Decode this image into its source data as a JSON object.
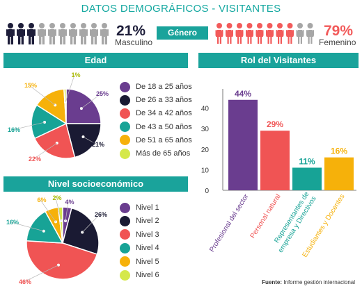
{
  "title": "DATOS DEMOGRÁFICOS - VISITANTES",
  "gender": {
    "badge": "Género",
    "male_pct": "21%",
    "male_label": "Masculino",
    "female_pct": "79%",
    "female_label": "Femenino",
    "male_color": "#1e1e3a",
    "female_color": "#f25a5a",
    "inactive_color": "#a6a6a6",
    "male_filled": 3,
    "female_filled": 8,
    "icons_per_side": 10
  },
  "age": {
    "header": "Edad"
  },
  "nse": {
    "header": "Nivel socioeconómico"
  },
  "role": {
    "header": "Rol del Visitantes"
  },
  "source": {
    "label": "Fuente:",
    "text": "Informe gestión internacional"
  },
  "chart_data": [
    {
      "type": "pie",
      "title": "Edad",
      "categories": [
        "De 18 a 25 años",
        "De 26 a 33 años",
        "De 34 a 42 años",
        "De 43 a 50 años",
        "De 51 a 65 años",
        "Más de 65 años"
      ],
      "values": [
        25,
        21,
        22,
        16,
        15,
        1
      ],
      "labels": [
        "25%",
        "21%",
        "22%",
        "16%",
        "15%",
        "1%"
      ],
      "colors": [
        "#6a3d8f",
        "#1a1a33",
        "#f05454",
        "#17a396",
        "#f6b10a",
        "#d5e84a"
      ],
      "legend": "right"
    },
    {
      "type": "pie",
      "title": "Nivel socioeconómico",
      "categories": [
        "Nivel 1",
        "Nivel 2",
        "Nivel 3",
        "Nivel 4",
        "Nivel 5",
        "Nivel 6"
      ],
      "values": [
        4,
        26,
        46,
        16,
        6,
        2
      ],
      "labels": [
        "4%",
        "26%",
        "46%",
        "16%",
        "6%",
        "2%"
      ],
      "colors": [
        "#6a3d8f",
        "#1a1a33",
        "#f05454",
        "#17a396",
        "#f6b10a",
        "#d5e84a"
      ],
      "legend": "right"
    },
    {
      "type": "bar",
      "title": "Rol del Visitantes",
      "categories": [
        "Profesional del sector",
        "Personal natural",
        "Representantes de empresa y Directivos",
        "Estudiantes y Docentes"
      ],
      "values": [
        44,
        29,
        11,
        16
      ],
      "labels": [
        "44%",
        "29%",
        "11%",
        "16%"
      ],
      "colors": [
        "#6a3d8f",
        "#f05454",
        "#17a396",
        "#f6b10a"
      ],
      "yticks": [
        0,
        10,
        20,
        30,
        40
      ],
      "ylim": [
        0,
        50
      ],
      "grid": false
    }
  ]
}
